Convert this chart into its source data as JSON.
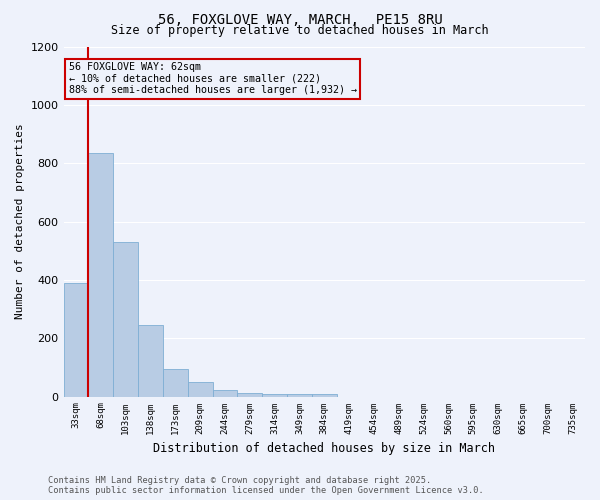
{
  "title": "56, FOXGLOVE WAY, MARCH,  PE15 8RU",
  "subtitle": "Size of property relative to detached houses in March",
  "xlabel": "Distribution of detached houses by size in March",
  "ylabel": "Number of detached properties",
  "categories": [
    "33sqm",
    "68sqm",
    "103sqm",
    "138sqm",
    "173sqm",
    "209sqm",
    "244sqm",
    "279sqm",
    "314sqm",
    "349sqm",
    "384sqm",
    "419sqm",
    "454sqm",
    "489sqm",
    "524sqm",
    "560sqm",
    "595sqm",
    "630sqm",
    "665sqm",
    "700sqm",
    "735sqm"
  ],
  "values": [
    390,
    835,
    530,
    245,
    95,
    50,
    22,
    12,
    10,
    8,
    10,
    0,
    0,
    0,
    0,
    0,
    0,
    0,
    0,
    0,
    0
  ],
  "bar_color": "#b8cce4",
  "bar_edge_color": "#7fafd4",
  "vline_color": "#cc0000",
  "vline_x_index": 1,
  "annotation_text": "56 FOXGLOVE WAY: 62sqm\n← 10% of detached houses are smaller (222)\n88% of semi-detached houses are larger (1,932) →",
  "annotation_box_color": "#cc0000",
  "ylim": [
    0,
    1200
  ],
  "yticks": [
    0,
    200,
    400,
    600,
    800,
    1000,
    1200
  ],
  "background_color": "#eef2fb",
  "grid_color": "#ffffff",
  "footer_line1": "Contains HM Land Registry data © Crown copyright and database right 2025.",
  "footer_line2": "Contains public sector information licensed under the Open Government Licence v3.0."
}
